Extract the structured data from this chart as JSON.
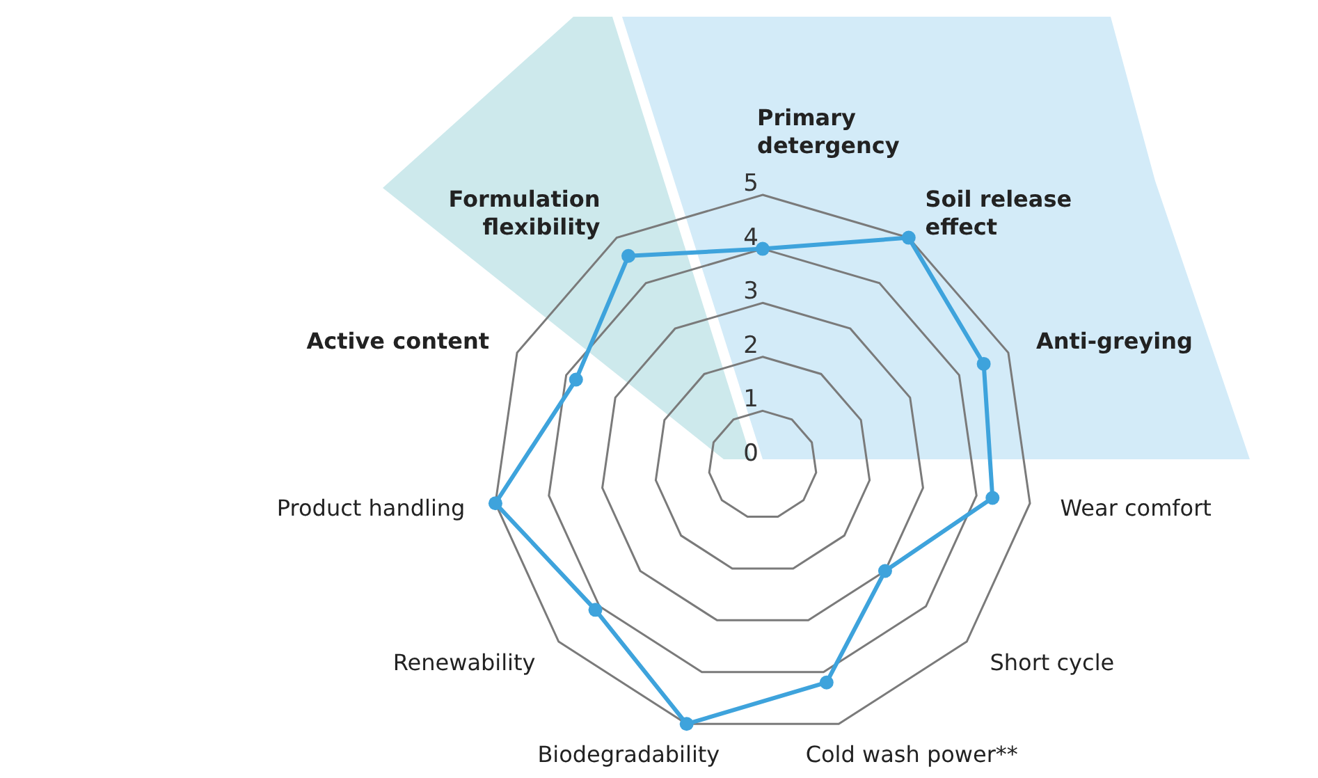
{
  "chart_data": {
    "type": "radar",
    "categories": [
      "Primary detergency",
      "Soil release effect",
      "Anti-greying",
      "Wear comfort",
      "Short cycle",
      "Cold wash power**",
      "Biodegradability",
      "Renewability",
      "Product handling",
      "Active content",
      "Formulation flexibility"
    ],
    "series": [
      {
        "color": "#3ea3dc",
        "values": [
          4,
          5,
          4.5,
          4.3,
          3,
          4.2,
          5,
          4.1,
          5,
          3.8,
          4.6
        ]
      }
    ],
    "ylim": [
      0,
      5
    ],
    "yticks": [
      0,
      1,
      2,
      3,
      4,
      5
    ],
    "grid": true,
    "marker": "circle",
    "legend": false
  }
}
